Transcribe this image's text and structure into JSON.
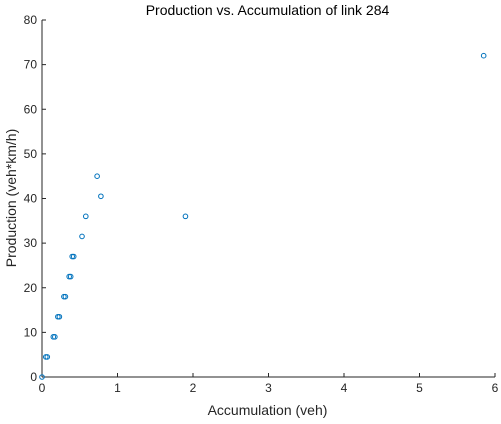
{
  "chart_data": {
    "type": "scatter",
    "title": "Production vs. Accumulation of link 284",
    "xlabel": "Accumulation (veh)",
    "ylabel": "Production (veh*km/h)",
    "xlim": [
      0,
      6
    ],
    "ylim": [
      0,
      80
    ],
    "xticks": [
      "0",
      "1",
      "2",
      "3",
      "4",
      "5",
      "6"
    ],
    "yticks": [
      "0",
      "10",
      "20",
      "30",
      "40",
      "50",
      "60",
      "70",
      "80"
    ],
    "grid": false,
    "marker": "open-circle",
    "color": "#0072BD",
    "series": [
      {
        "x": [
          0.0,
          0.05,
          0.07,
          0.15,
          0.17,
          0.21,
          0.23,
          0.29,
          0.31,
          0.36,
          0.38,
          0.4,
          0.42,
          0.53,
          0.58,
          0.73,
          0.78,
          1.9,
          5.85
        ],
        "y": [
          0.0,
          4.5,
          4.5,
          9.0,
          9.0,
          13.5,
          13.5,
          18.0,
          18.0,
          22.5,
          22.5,
          27.0,
          27.0,
          31.5,
          36.0,
          45.0,
          40.5,
          36.0,
          72.0
        ]
      }
    ]
  }
}
